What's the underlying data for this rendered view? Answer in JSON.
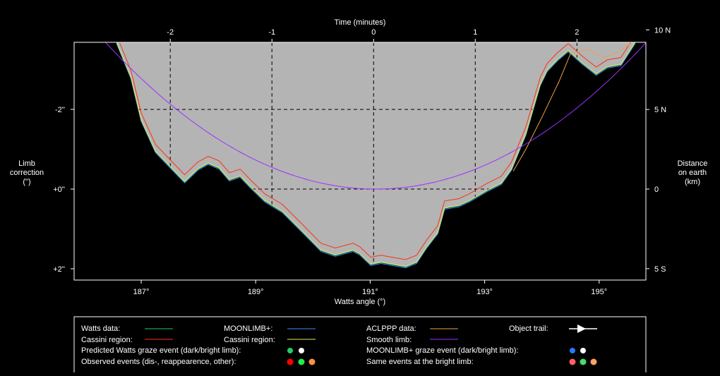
{
  "chart_data": {
    "type": "line",
    "title": "",
    "top_axis": {
      "label": "Time (minutes)",
      "ticks": [
        -2,
        -1,
        0,
        1,
        2
      ],
      "tick_labels": [
        "-2",
        "-1",
        "0",
        "1",
        "2"
      ]
    },
    "bottom_axis": {
      "label": "Watts angle (°)",
      "range": [
        185.83,
        195.82
      ],
      "ticks": [
        187,
        189,
        191,
        193,
        195
      ],
      "tick_labels": [
        "187°",
        "189°",
        "191°",
        "193°",
        "195°"
      ]
    },
    "left_axis": {
      "label_lines": [
        "Limb",
        "correction",
        "(\")"
      ],
      "range": [
        -3.7,
        2.3
      ],
      "ticks": [
        -2,
        0,
        2
      ],
      "tick_labels": [
        "-2''",
        "+0''",
        "+2''"
      ]
    },
    "right_axis": {
      "label_lines": [
        "Distance",
        "on earth",
        "(km)"
      ],
      "ticks": [
        10,
        5,
        0,
        -5
      ],
      "tick_labels": [
        "10 N",
        "5 N",
        "0",
        "5 S"
      ]
    },
    "time_angle_map": {
      "angle_at_0": 191.06,
      "degrees_per_minute": 1.776
    },
    "km_per_arcsec": 2.5,
    "grid": true,
    "profile": {
      "angle": [
        186.57,
        186.82,
        187.0,
        187.25,
        187.49,
        187.76,
        187.99,
        188.17,
        188.36,
        188.54,
        188.73,
        188.91,
        189.16,
        189.47,
        189.84,
        190.14,
        190.39,
        190.7,
        190.82,
        191.01,
        191.19,
        191.38,
        191.62,
        191.81,
        191.99,
        192.18,
        192.3,
        192.55,
        192.73,
        193.04,
        193.29,
        193.47,
        193.72,
        193.97,
        194.09,
        194.27,
        194.46,
        194.71,
        194.95,
        195.14,
        195.38,
        195.63
      ],
      "limb": [
        -3.68,
        -2.8,
        -1.73,
        -0.94,
        -0.58,
        -0.18,
        -0.5,
        -0.64,
        -0.53,
        -0.23,
        -0.32,
        -0.05,
        0.3,
        0.57,
        1.1,
        1.54,
        1.66,
        1.54,
        1.63,
        1.89,
        1.84,
        1.89,
        1.95,
        1.84,
        1.45,
        1.1,
        0.48,
        0.42,
        0.3,
        0.04,
        -0.14,
        -0.5,
        -1.38,
        -2.62,
        -2.97,
        -3.24,
        -3.47,
        -3.15,
        -2.88,
        -3.06,
        -3.12,
        -3.68
      ]
    },
    "cassini_offset": -0.18,
    "aclppp_deviation": {
      "angle": [
        193.5,
        193.72,
        194.0,
        194.3,
        194.5,
        194.8,
        195.1,
        195.4,
        195.7
      ],
      "limb": [
        -0.45,
        -1.0,
        -1.8,
        -2.7,
        -3.4,
        -3.5,
        -3.3,
        -3.5,
        -3.8
      ]
    },
    "smooth_limb": {
      "vertex_angle": 191.1,
      "coefficient": -0.165
    },
    "colors": {
      "fill": "#b4b4b4",
      "watts": "#22cc66",
      "cassini": "#ff3010",
      "moonlimb": "#3a8cff",
      "cassini2": "#e8e860",
      "aclppp": "#f0a040",
      "smooth": "#9a30ff"
    }
  },
  "legend": {
    "watts": "Watts data:",
    "cassini1": "Cassini region:",
    "predicted": "Predicted Watts graze event (dark/bright limb):",
    "observed": "Observed events (dis-, reappearence, other):",
    "moonlimb": "MOONLIMB+:",
    "cassini2": "Cassini region:",
    "aclppp": "ACLPPP data:",
    "smooth": "Smooth limb:",
    "moonlimb_event": "MOONLIMB+ graze event (dark/bright limb):",
    "bright": "Same events at the bright limb:",
    "trail": "Object trail:"
  }
}
